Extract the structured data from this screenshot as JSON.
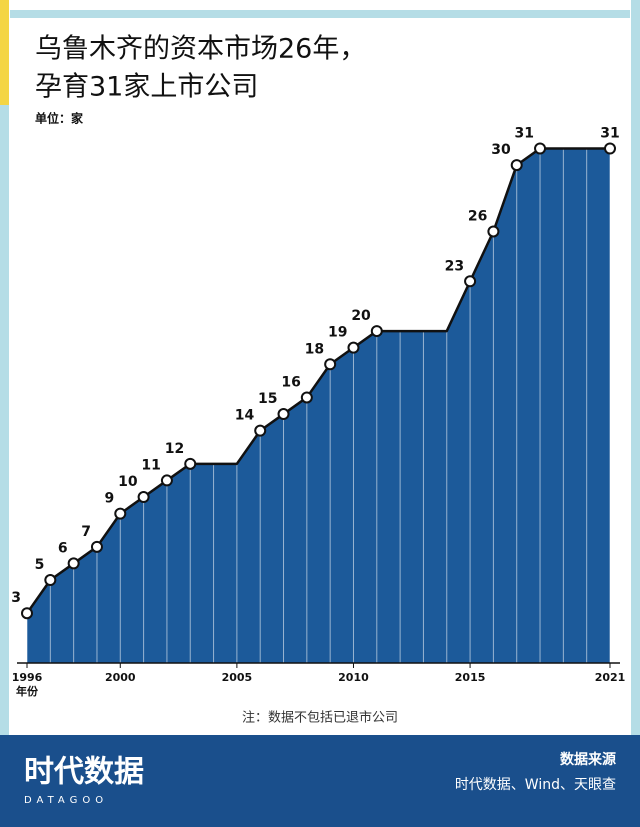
{
  "chart_data": {
    "type": "area",
    "title": [
      "乌鲁木齐的资本市场26年，",
      "孕育31家上市公司"
    ],
    "unit": "单位：家",
    "x_label": "年份",
    "note": "注：数据不包括已退市公司",
    "source_title": "数据来源",
    "source": "时代数据、Wind、天眼查",
    "brand": "时代数据",
    "brand_sub": "DATAGOO",
    "x": [
      1996,
      1997,
      1998,
      1999,
      2000,
      2001,
      2002,
      2003,
      2004,
      2005,
      2006,
      2007,
      2008,
      2009,
      2010,
      2011,
      2012,
      2013,
      2014,
      2015,
      2016,
      2017,
      2018,
      2019,
      2020,
      2021
    ],
    "values": [
      3,
      5,
      6,
      7,
      9,
      10,
      11,
      12,
      12,
      12,
      14,
      15,
      16,
      18,
      19,
      20,
      20,
      20,
      20,
      23,
      26,
      30,
      31,
      31,
      31,
      31
    ],
    "color": "#1c5a9a",
    "xlim": [
      1996,
      2021
    ],
    "xticks": [
      1996,
      2000,
      2005,
      2010,
      2015,
      2021
    ],
    "ylim": [
      0,
      31
    ]
  }
}
